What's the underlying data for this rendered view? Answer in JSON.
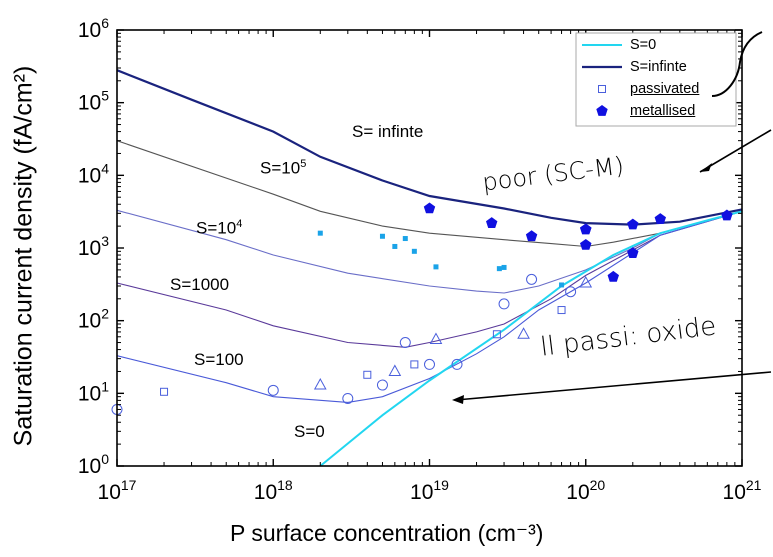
{
  "chart_data": {
    "type": "line",
    "xlabel": "P surface concentration (cm⁻³)",
    "ylabel": "Saturation current density (fA/cm²)",
    "xscale": "log",
    "yscale": "log",
    "xlim": [
      1e+17,
      1e+21
    ],
    "ylim": [
      1,
      1000000.0
    ],
    "x_ticks": [
      {
        "v": 1e+17,
        "base": "10",
        "exp": "17"
      },
      {
        "v": 1e+18,
        "base": "10",
        "exp": "18"
      },
      {
        "v": 1e+19,
        "base": "10",
        "exp": "19"
      },
      {
        "v": 1e+20,
        "base": "10",
        "exp": "20"
      },
      {
        "v": 1e+21,
        "base": "10",
        "exp": "21"
      }
    ],
    "y_ticks": [
      {
        "v": 1,
        "base": "10",
        "exp": "0"
      },
      {
        "v": 10,
        "base": "10",
        "exp": "1"
      },
      {
        "v": 100,
        "base": "10",
        "exp": "2"
      },
      {
        "v": 1000,
        "base": "10",
        "exp": "3"
      },
      {
        "v": 10000,
        "base": "10",
        "exp": "4"
      },
      {
        "v": 100000,
        "base": "10",
        "exp": "5"
      },
      {
        "v": 1000000,
        "base": "10",
        "exp": "6"
      }
    ],
    "legend_position": "top-right",
    "series": [
      {
        "name": "S=0",
        "kind": "line",
        "color": "#22d6f0",
        "x": [
          2e+18,
          5e+18,
          1e+19,
          3e+19,
          7e+19,
          1.5e+20,
          3e+20,
          6e+20,
          1e+21
        ],
        "y": [
          1.0,
          5.0,
          15,
          75,
          300,
          800,
          1600,
          2400,
          3200
        ]
      },
      {
        "name": "S=infinte",
        "kind": "line",
        "color": "#1a237e",
        "x": [
          1e+17,
          3e+17,
          1e+18,
          2e+18,
          5e+18,
          1e+19,
          3e+19,
          6e+19,
          1e+20,
          2e+20,
          4e+20,
          1e+21
        ],
        "y": [
          280000,
          110000,
          40000,
          18000,
          8500,
          5200,
          3500,
          2600,
          2200,
          2100,
          2300,
          3400
        ]
      },
      {
        "name": "passivated",
        "kind": "scatter",
        "marker": "open-mixed",
        "color": "#4a5fdc",
        "x": [
          1e+17,
          2e+17,
          1e+18,
          2e+18,
          3e+18,
          4e+18,
          5e+18,
          6e+18,
          7e+18,
          8e+18,
          1e+19,
          1.1e+19,
          1.5e+19,
          2.7e+19,
          3e+19,
          4e+19,
          4.5e+19,
          7e+19,
          8e+19,
          1e+20
        ],
        "y": [
          6,
          10.5,
          11,
          13,
          8.5,
          18,
          13,
          20,
          50,
          25,
          25,
          55,
          25,
          65,
          170,
          65,
          370,
          140,
          250,
          330
        ]
      },
      {
        "name": "",
        "kind": "scatter",
        "marker": "filled-square-small",
        "color": "#1aa3e8",
        "x": [
          2e+18,
          5e+18,
          6e+18,
          7e+18,
          8e+18,
          1.1e+19,
          2.8e+19,
          3e+19,
          7e+19
        ],
        "y": [
          1600,
          1450,
          1050,
          1350,
          900,
          550,
          520,
          540,
          310
        ]
      },
      {
        "name": "metallised",
        "kind": "scatter",
        "marker": "filled-pentagon",
        "color": "#1010e0",
        "x": [
          1e+19,
          2.5e+19,
          4.5e+19,
          1e+20,
          1e+20,
          1e+20,
          1.5e+20,
          2e+20,
          2e+20,
          3e+20,
          8e+20
        ],
        "y": [
          3500,
          2200,
          1450,
          1800,
          1100,
          1800,
          400,
          2100,
          850,
          2500,
          2800
        ]
      }
    ],
    "reference_curves": [
      {
        "label": "S=100000",
        "color": "#555555",
        "x": [
          1e+17,
          1e+18,
          2e+18,
          5e+18,
          1e+19,
          3e+19,
          6e+19,
          1e+20,
          1.5e+20,
          3e+20,
          1e+21
        ],
        "y": [
          30000,
          5500,
          3200,
          2000,
          1600,
          1300,
          1150,
          1050,
          1200,
          1600,
          3200
        ]
      },
      {
        "label": "S=10000",
        "color": "#6a6ec8",
        "x": [
          1e+17,
          5e+17,
          1e+18,
          3e+18,
          1e+19,
          2e+19,
          3e+19,
          5e+19,
          1e+20,
          2e+20,
          3e+20,
          1e+21
        ],
        "y": [
          3300,
          1300,
          800,
          450,
          300,
          255,
          240,
          300,
          500,
          1000,
          1600,
          3200
        ]
      },
      {
        "label": "S=1000",
        "color": "#5a3a9a",
        "x": [
          1e+17,
          5e+17,
          1e+18,
          3e+18,
          7e+18,
          1e+19,
          2e+19,
          3e+19,
          6e+19,
          1e+20,
          3e+20,
          1e+21
        ],
        "y": [
          330,
          140,
          85,
          50,
          43,
          50,
          70,
          90,
          200,
          420,
          1500,
          3200
        ]
      },
      {
        "label": "S=100",
        "color": "#4a5ad8",
        "x": [
          1e+17,
          5e+17,
          1e+18,
          3e+18,
          5e+18,
          1e+19,
          2e+19,
          3e+19,
          5e+19,
          1e+20,
          3e+20,
          1e+21
        ],
        "y": [
          33,
          14,
          9,
          7.5,
          9,
          16,
          35,
          60,
          140,
          330,
          1500,
          3200
        ]
      }
    ],
    "annotations": [
      {
        "text": "S= infinte"
      },
      {
        "text": "S=10",
        "sup": "5"
      },
      {
        "text": "S=10",
        "sup": "4"
      },
      {
        "text": "S=1000"
      },
      {
        "text": "S=100"
      },
      {
        "text": "S=0"
      }
    ],
    "handwritten": [
      "poor (SC-M)",
      "ll passi: oxide"
    ]
  }
}
